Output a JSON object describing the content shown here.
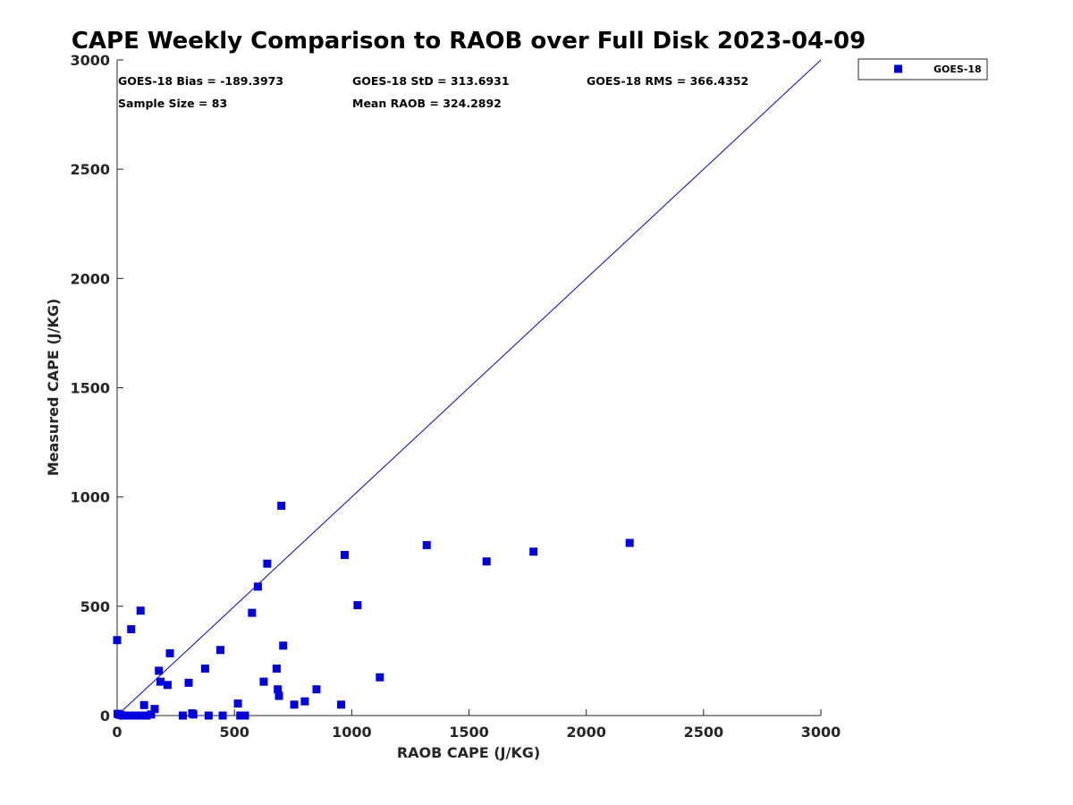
{
  "chart_data": {
    "type": "scatter",
    "title": "CAPE Weekly Comparison to RAOB over Full Disk 2023-04-09",
    "xlabel": "RAOB CAPE (J/KG)",
    "ylabel": "Measured CAPE (J/KG)",
    "xlim": [
      0,
      3000
    ],
    "ylim": [
      0,
      3000
    ],
    "xticks": [
      0,
      500,
      1000,
      1500,
      2000,
      2500,
      3000
    ],
    "yticks": [
      0,
      500,
      1000,
      1500,
      2000,
      2500,
      3000
    ],
    "xtick_labels": [
      "0",
      "500",
      "1000",
      "1500",
      "2000",
      "2500",
      "3000"
    ],
    "ytick_labels": [
      "0",
      "500",
      "1000",
      "1500",
      "2000",
      "2500",
      "3000"
    ],
    "grid": false,
    "legend_position": "outside-top-right",
    "reference_line": {
      "from": [
        0,
        0
      ],
      "to": [
        3000,
        3000
      ],
      "color": "#0000dd"
    },
    "series": [
      {
        "name": "GOES-18",
        "color": "#0000dd",
        "marker": "square",
        "points": [
          [
            0,
            345
          ],
          [
            2,
            8
          ],
          [
            8,
            5
          ],
          [
            15,
            3
          ],
          [
            25,
            0
          ],
          [
            40,
            0
          ],
          [
            55,
            0
          ],
          [
            70,
            0
          ],
          [
            85,
            0
          ],
          [
            95,
            0
          ],
          [
            60,
            395
          ],
          [
            100,
            480
          ],
          [
            115,
            48
          ],
          [
            125,
            0
          ],
          [
            145,
            5
          ],
          [
            160,
            30
          ],
          [
            178,
            205
          ],
          [
            185,
            155
          ],
          [
            215,
            140
          ],
          [
            225,
            285
          ],
          [
            280,
            0
          ],
          [
            305,
            150
          ],
          [
            320,
            10
          ],
          [
            325,
            5
          ],
          [
            375,
            215
          ],
          [
            390,
            0
          ],
          [
            440,
            300
          ],
          [
            450,
            0
          ],
          [
            515,
            55
          ],
          [
            525,
            0
          ],
          [
            545,
            0
          ],
          [
            575,
            470
          ],
          [
            600,
            590
          ],
          [
            625,
            155
          ],
          [
            640,
            695
          ],
          [
            680,
            215
          ],
          [
            685,
            120
          ],
          [
            690,
            90
          ],
          [
            700,
            960
          ],
          [
            708,
            320
          ],
          [
            755,
            50
          ],
          [
            800,
            65
          ],
          [
            850,
            120
          ],
          [
            955,
            50
          ],
          [
            970,
            735
          ],
          [
            1025,
            505
          ],
          [
            1120,
            175
          ],
          [
            1320,
            780
          ],
          [
            1575,
            705
          ],
          [
            1775,
            750
          ],
          [
            2185,
            790
          ]
        ]
      }
    ],
    "annotations": {
      "bias": "GOES-18 Bias = -189.3973",
      "std": "GOES-18 StD = 313.6931",
      "rms": "GOES-18 RMS = 366.4352",
      "sample_size": "Sample Size = 83",
      "mean_raob": "Mean RAOB = 324.2892"
    }
  }
}
